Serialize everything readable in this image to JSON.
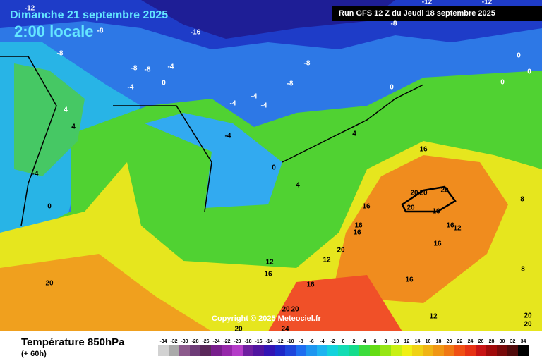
{
  "header": {
    "date": "Dimanche 21 septembre 2025",
    "time": "2:00 locale",
    "run": "Run GFS 12 Z du Jeudi 18 septembre 2025"
  },
  "map": {
    "copyright": "Copyright © 2025 Meteociel.fr",
    "contour_labels": [
      -12,
      -8,
      -16,
      -8,
      -8,
      -8,
      -4,
      -8,
      -4,
      0,
      4,
      4,
      -4,
      -4,
      -4,
      -4,
      -8,
      0,
      -8,
      -12,
      -12,
      0,
      0,
      0,
      4,
      0,
      -4,
      0,
      4,
      16,
      20,
      20,
      20,
      20,
      16,
      16,
      16,
      16,
      16,
      12,
      16,
      20,
      12,
      12,
      16,
      20,
      16,
      16,
      20,
      20,
      12,
      20,
      20,
      20,
      24,
      8,
      8
    ]
  },
  "legend": {
    "title": "Température 850hPa",
    "lead": "(+ 60h)",
    "ticks": [
      -34,
      -32,
      -30,
      -28,
      -26,
      -24,
      -22,
      -20,
      -18,
      -16,
      -14,
      -12,
      -10,
      -8,
      -6,
      -4,
      -2,
      0,
      2,
      4,
      6,
      8,
      10,
      12,
      14,
      16,
      18,
      20,
      22,
      24,
      26,
      28,
      30,
      32,
      34
    ],
    "colors": [
      "#d2d2d2",
      "#aaaaaa",
      "#8c5a8c",
      "#6e3c78",
      "#5a285a",
      "#781e8c",
      "#9628aa",
      "#b43cc8",
      "#6e1ea0",
      "#5014a0",
      "#3214b4",
      "#1e28c8",
      "#1e46dc",
      "#1e6ef0",
      "#1e96f0",
      "#1eb4f0",
      "#14d2dc",
      "#14dcb4",
      "#14dc8c",
      "#3cdc3c",
      "#64dc14",
      "#96e614",
      "#c8f014",
      "#f0f014",
      "#f0d214",
      "#f0b414",
      "#f09614",
      "#f07814",
      "#f05014",
      "#e63214",
      "#c81414",
      "#a00a0a",
      "#780a0a",
      "#500a0a",
      "#000000"
    ]
  }
}
